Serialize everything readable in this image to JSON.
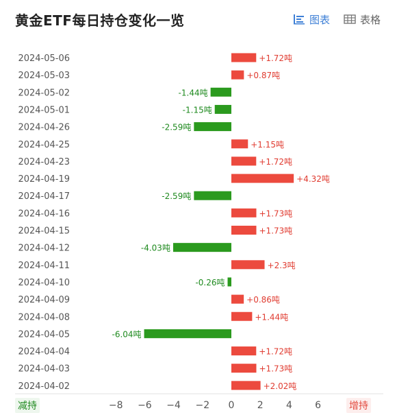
{
  "header": {
    "title": "黄金ETF每日持仓变化一览",
    "chart_view_label": "图表",
    "table_view_label": "表格",
    "active_view": "chart",
    "accent_color": "#3d7fd6"
  },
  "legend": {
    "decrease_label": "减持",
    "increase_label": "增持",
    "decrease_color": "#2b9a1e",
    "increase_color": "#ec4a3e"
  },
  "chart_data": {
    "type": "bar",
    "orientation": "horizontal",
    "categories": [
      "2024-05-06",
      "2024-05-03",
      "2024-05-02",
      "2024-05-01",
      "2024-04-26",
      "2024-04-25",
      "2024-04-23",
      "2024-04-19",
      "2024-04-17",
      "2024-04-16",
      "2024-04-15",
      "2024-04-12",
      "2024-04-11",
      "2024-04-10",
      "2024-04-09",
      "2024-04-08",
      "2024-04-05",
      "2024-04-04",
      "2024-04-03",
      "2024-04-02"
    ],
    "values": [
      1.72,
      0.87,
      -1.44,
      -1.15,
      -2.59,
      1.15,
      1.72,
      4.32,
      -2.59,
      1.73,
      1.73,
      -4.03,
      2.3,
      -0.26,
      0.86,
      1.44,
      -6.04,
      1.72,
      1.73,
      2.02
    ],
    "labels": [
      "+1.72吨",
      "+0.87吨",
      "-1.44吨",
      "-1.15吨",
      "-2.59吨",
      "+1.15吨",
      "+1.72吨",
      "+4.32吨",
      "-2.59吨",
      "+1.73吨",
      "+1.73吨",
      "-4.03吨",
      "+2.3吨",
      "-0.26吨",
      "+0.86吨",
      "+1.44吨",
      "-6.04吨",
      "+1.72吨",
      "+1.73吨",
      "+2.02吨"
    ],
    "x_ticks": [
      "−8",
      "−6",
      "−4",
      "−2",
      "0",
      "2",
      "4",
      "6"
    ],
    "x_tick_values": [
      -8,
      -6,
      -4,
      -2,
      0,
      2,
      4,
      6
    ],
    "xlim": [
      -9,
      9
    ],
    "grid": false
  }
}
